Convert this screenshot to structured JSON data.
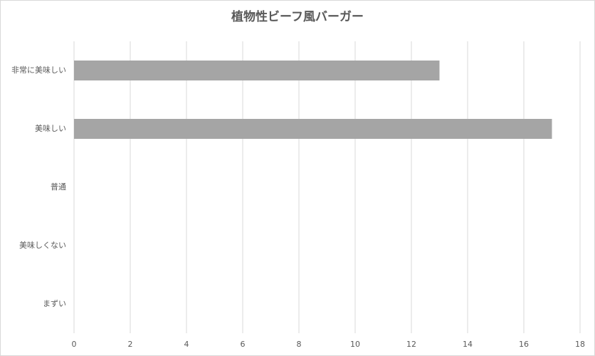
{
  "chart_data": {
    "type": "bar",
    "orientation": "horizontal",
    "title": "植物性ビーフ風バーガー",
    "categories": [
      "非常に美味しい",
      "美味しい",
      "普通",
      "美味しくない",
      "まずい"
    ],
    "values": [
      13,
      17,
      0,
      0,
      0
    ],
    "color": "#a5a5a5",
    "xlim": [
      0,
      18
    ],
    "xticks": [
      0,
      2,
      4,
      6,
      8,
      10,
      12,
      14,
      16,
      18
    ],
    "grid": true
  }
}
